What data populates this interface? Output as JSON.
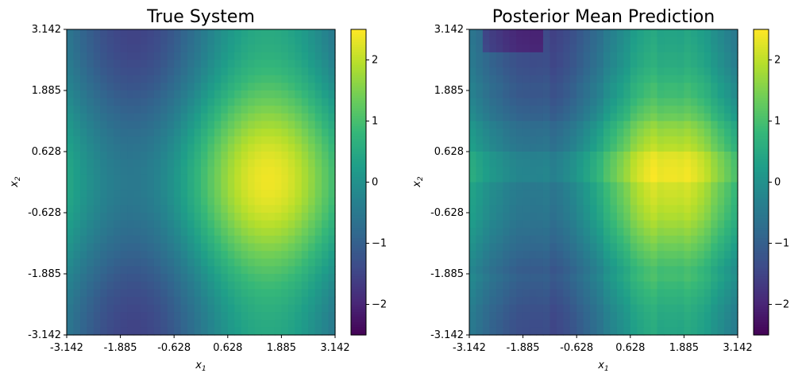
{
  "chart_data": [
    {
      "type": "heatmap",
      "title": "True System",
      "xlabel": "x1",
      "ylabel": "x2",
      "xticks": [
        "-3.142",
        "-1.885",
        "-0.628",
        "0.628",
        "1.885",
        "3.142"
      ],
      "yticks": [
        "3.142",
        "1.885",
        "0.628",
        "-0.628",
        "-1.885",
        "-3.142"
      ],
      "xlim": [
        -3.142,
        3.142
      ],
      "ylim": [
        -3.142,
        3.142
      ],
      "grid": 40,
      "colormap": "viridis",
      "colorbar": {
        "ticks": [
          "2",
          "1",
          "0",
          "−1",
          "−2"
        ],
        "vmin": -2.5,
        "vmax": 2.5
      }
    },
    {
      "type": "heatmap",
      "title": "Posterior Mean Prediction",
      "xlabel": "x1",
      "ylabel": "x2",
      "xticks": [
        "-3.142",
        "-1.885",
        "-0.628",
        "0.628",
        "1.885",
        "3.142"
      ],
      "yticks": [
        "3.142",
        "1.885",
        "0.628",
        "-0.628",
        "-1.885",
        "-3.142"
      ],
      "xlim": [
        -3.142,
        3.142
      ],
      "ylim": [
        -3.142,
        3.142
      ],
      "grid": 40,
      "colormap": "viridis",
      "colorbar": {
        "ticks": [
          "2",
          "1",
          "0",
          "−1",
          "−2"
        ],
        "vmin": -2.5,
        "vmax": 2.5
      }
    }
  ]
}
